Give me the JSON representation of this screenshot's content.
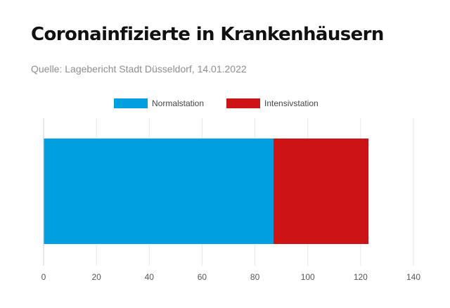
{
  "header": {
    "title": "Coronainfizierte in Krankenhäusern",
    "subtitle": "Quelle: Lagebericht Stadt Düsseldorf, 14.01.2022"
  },
  "chart_data": {
    "type": "bar",
    "orientation": "horizontal",
    "stacked": true,
    "categories": [
      ""
    ],
    "series": [
      {
        "name": "Normalstation",
        "values": [
          87
        ],
        "color": "#00a0e0"
      },
      {
        "name": "Intensivstation",
        "values": [
          36
        ],
        "color": "#cc1417"
      }
    ],
    "xlim": [
      0,
      140
    ],
    "xticks": [
      0,
      20,
      40,
      60,
      80,
      100,
      120,
      140
    ],
    "grid": true,
    "legend_position": "top-center"
  }
}
